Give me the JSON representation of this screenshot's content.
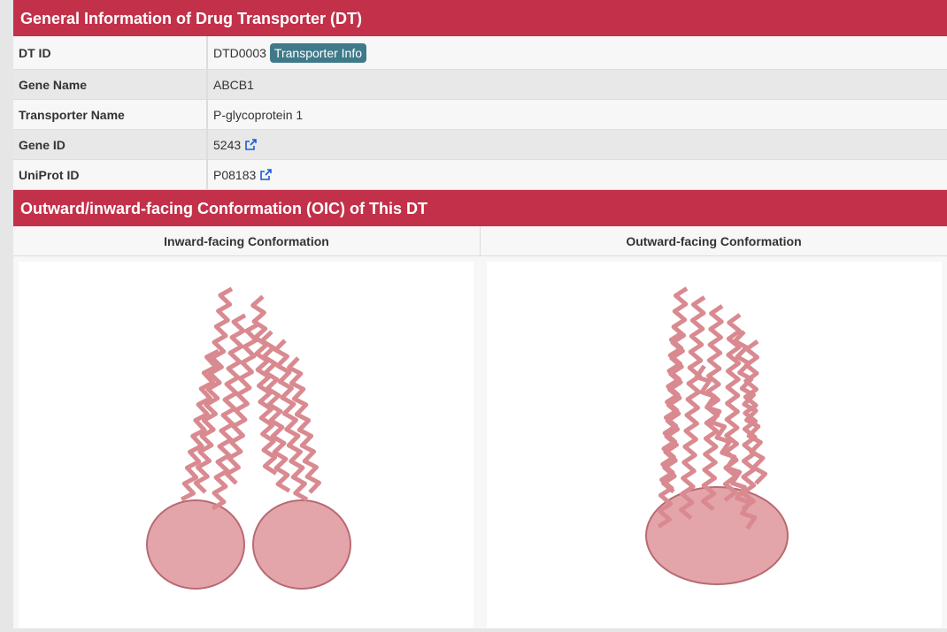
{
  "general": {
    "title": "General Information of Drug Transporter (DT)",
    "rows": [
      {
        "label": "DT ID",
        "value": "DTD0003",
        "button": "Transporter Info"
      },
      {
        "label": "Gene Name",
        "value": "ABCB1"
      },
      {
        "label": "Transporter Name",
        "value": "P-glycoprotein 1"
      },
      {
        "label": "Gene ID",
        "value": "5243",
        "icon": "external-link-icon"
      },
      {
        "label": "UniProt ID",
        "value": "P08183",
        "icon": "external-link-icon"
      }
    ]
  },
  "oic": {
    "title": "Outward/inward-facing Conformation (OIC) of This DT",
    "inward_label": "Inward-facing Conformation",
    "outward_label": "Outward-facing Conformation"
  },
  "colors": {
    "header": "#c33049",
    "button": "#3f7a8a",
    "protein": "#d98a90",
    "link": "#1a5bd6"
  }
}
